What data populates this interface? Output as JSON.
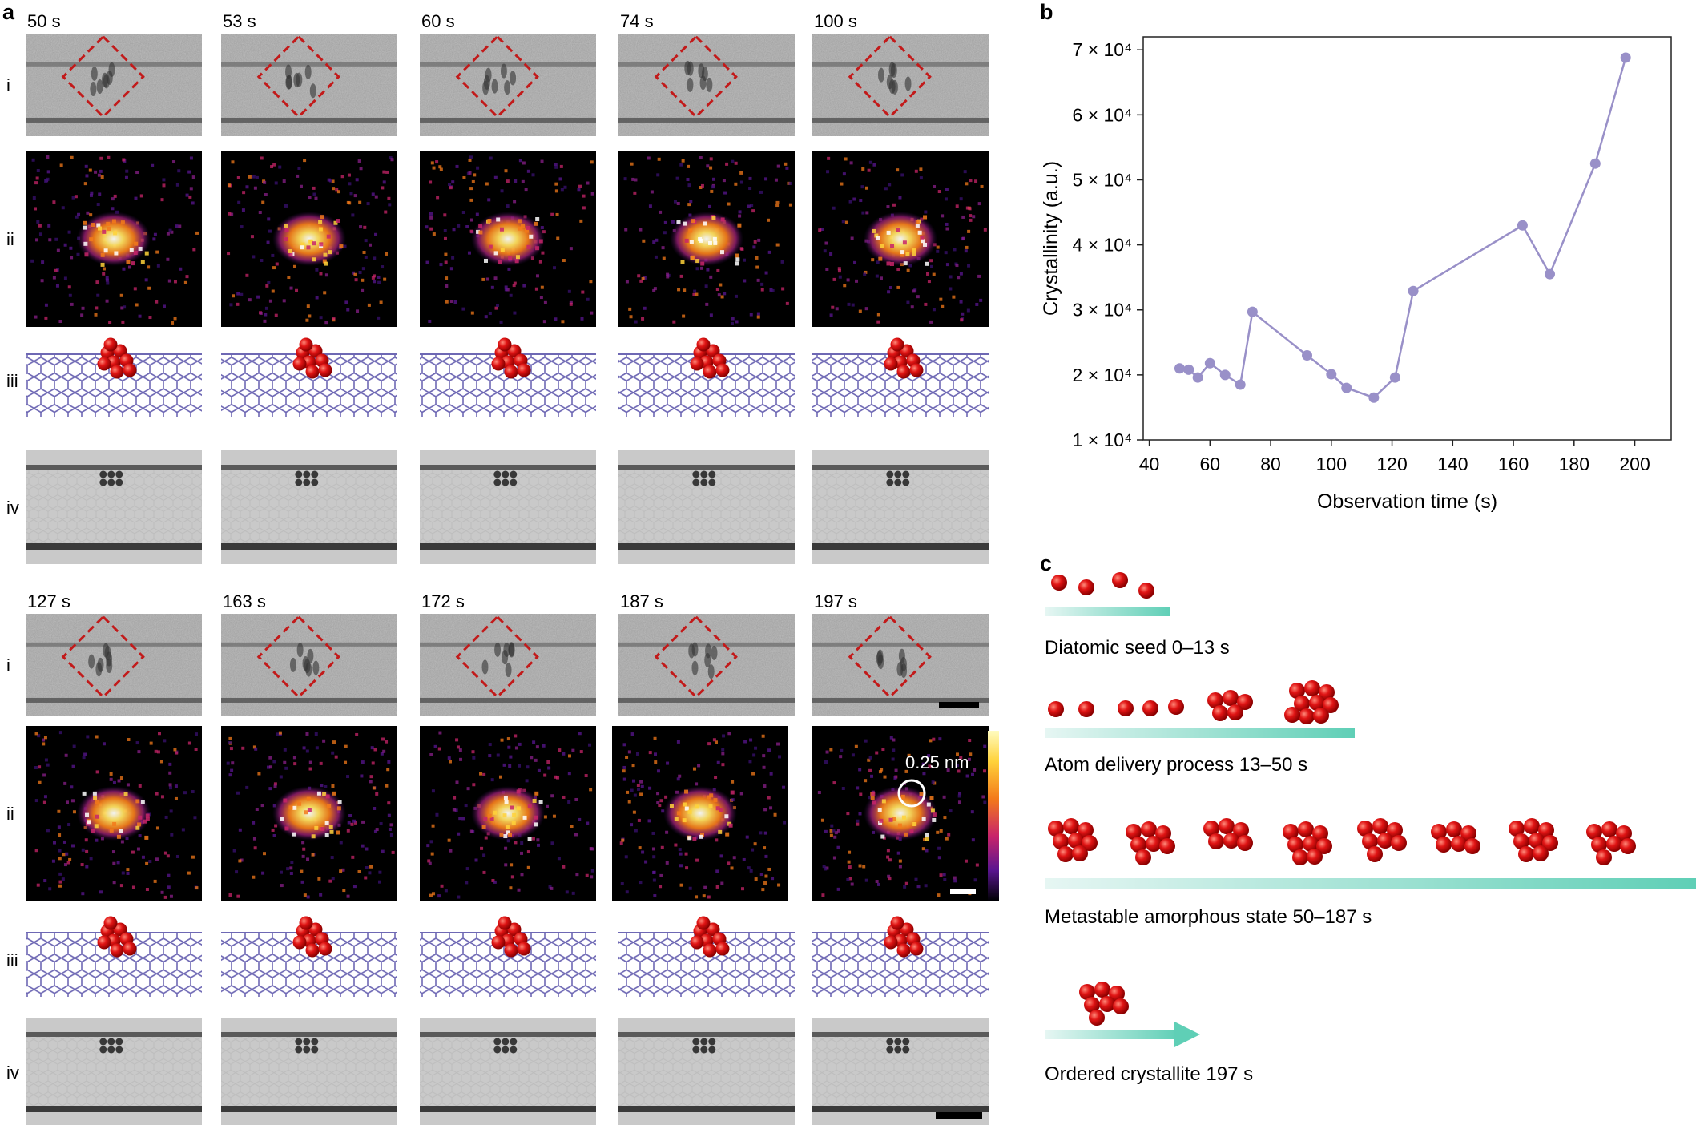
{
  "panel_a": {
    "letter": "a",
    "row_labels": [
      "i",
      "ii",
      "iii",
      "iv"
    ],
    "block1_times": [
      "50 s",
      "53 s",
      "60 s",
      "74 s",
      "100 s"
    ],
    "block2_times": [
      "127 s",
      "163 s",
      "172 s",
      "187 s",
      "197 s"
    ],
    "fft_annotation": "0.25 nm"
  },
  "panel_b": {
    "letter": "b"
  },
  "chart_data": {
    "type": "line",
    "xlabel": "Observation time (s)",
    "ylabel": "Crystallinity (a.u.)",
    "xlim": [
      38,
      212
    ],
    "ylim": [
      10000,
      72000
    ],
    "xticks": [
      40,
      60,
      80,
      100,
      120,
      140,
      160,
      180,
      200
    ],
    "xtick_labels": [
      "40",
      "60",
      "80",
      "100",
      "120",
      "140",
      "160",
      "180",
      "200"
    ],
    "yticks": [
      10000,
      20000,
      30000,
      40000,
      50000,
      60000,
      70000
    ],
    "ytick_labels": [
      "1 × 10⁴",
      "2 × 10⁴",
      "3 × 10⁴",
      "4 × 10⁴",
      "5 × 10⁴",
      "6 × 10⁴",
      "7 × 10⁴"
    ],
    "grid": false,
    "color": "#9990c8",
    "x": [
      50,
      53,
      56,
      60,
      65,
      70,
      74,
      92,
      100,
      105,
      114,
      121,
      127,
      163,
      172,
      187,
      197
    ],
    "y": [
      21000,
      20800,
      19600,
      21800,
      20000,
      18500,
      29700,
      23000,
      20100,
      18000,
      16500,
      19600,
      32900,
      43000,
      35500,
      52500,
      68800
    ]
  },
  "panel_c": {
    "letter": "c",
    "stages": [
      {
        "label": "Diatomic seed  0–13 s"
      },
      {
        "label": "Atom delivery process  13–50 s"
      },
      {
        "label": "Metastable amorphous state 50–187 s"
      },
      {
        "label": "Ordered crystallite 197 s"
      }
    ]
  },
  "colors": {
    "atom": "#d80f0f",
    "bar": "#5fcfb6",
    "nanotube": "#6e68b4",
    "roi": "#c21a1a",
    "chart_line": "#9990c8"
  }
}
